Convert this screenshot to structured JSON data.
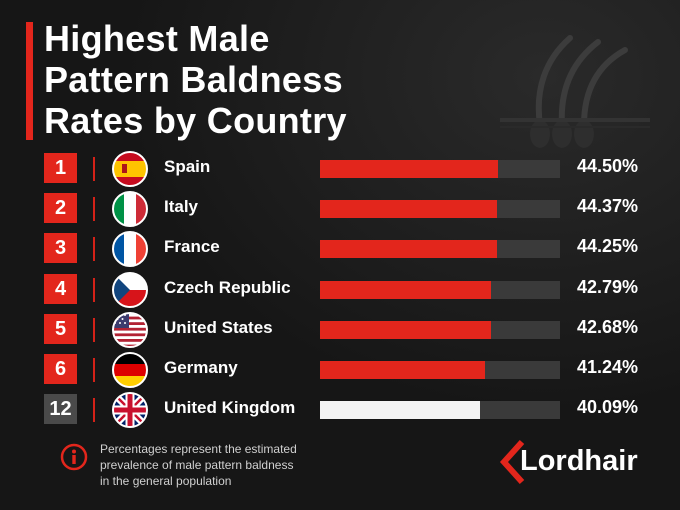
{
  "title": {
    "line1": "Highest Male",
    "line2": "Pattern Baldness",
    "line3": "Rates by Country"
  },
  "chart_data": {
    "type": "bar",
    "title": "Highest Male Pattern Baldness Rates by Country",
    "value_unit": "%",
    "scale_max": 60,
    "rows": [
      {
        "rank": "1",
        "country": "Spain",
        "value": 44.5,
        "label": "44.50%",
        "flag": "spain-flag-icon",
        "highlight": "#e3261c"
      },
      {
        "rank": "2",
        "country": "Italy",
        "value": 44.37,
        "label": "44.37%",
        "flag": "italy-flag-icon",
        "highlight": "#e3261c"
      },
      {
        "rank": "3",
        "country": "France",
        "value": 44.25,
        "label": "44.25%",
        "flag": "france-flag-icon",
        "highlight": "#e3261c"
      },
      {
        "rank": "4",
        "country": "Czech Republic",
        "value": 42.79,
        "label": "42.79%",
        "flag": "czech-flag-icon",
        "highlight": "#e3261c"
      },
      {
        "rank": "5",
        "country": "United States",
        "value": 42.68,
        "label": "42.68%",
        "flag": "usa-flag-icon",
        "highlight": "#e3261c"
      },
      {
        "rank": "6",
        "country": "Germany",
        "value": 41.24,
        "label": "41.24%",
        "flag": "germany-flag-icon",
        "highlight": "#e3261c"
      },
      {
        "rank": "12",
        "country": "United Kingdom",
        "value": 40.09,
        "label": "40.09%",
        "flag": "uk-flag-icon",
        "highlight": "#f4f4f4"
      }
    ]
  },
  "footnote": {
    "line1": "Percentages represent the estimated",
    "line2": "prevalence of male pattern baldness",
    "line3": "in the general population"
  },
  "brand": {
    "name": "Lordhair",
    "accent": "#e3261c"
  },
  "colors": {
    "background": "#161616",
    "accent": "#e3261c",
    "track": "#3a3a3a",
    "rank_gray": "#4a4a4a"
  }
}
